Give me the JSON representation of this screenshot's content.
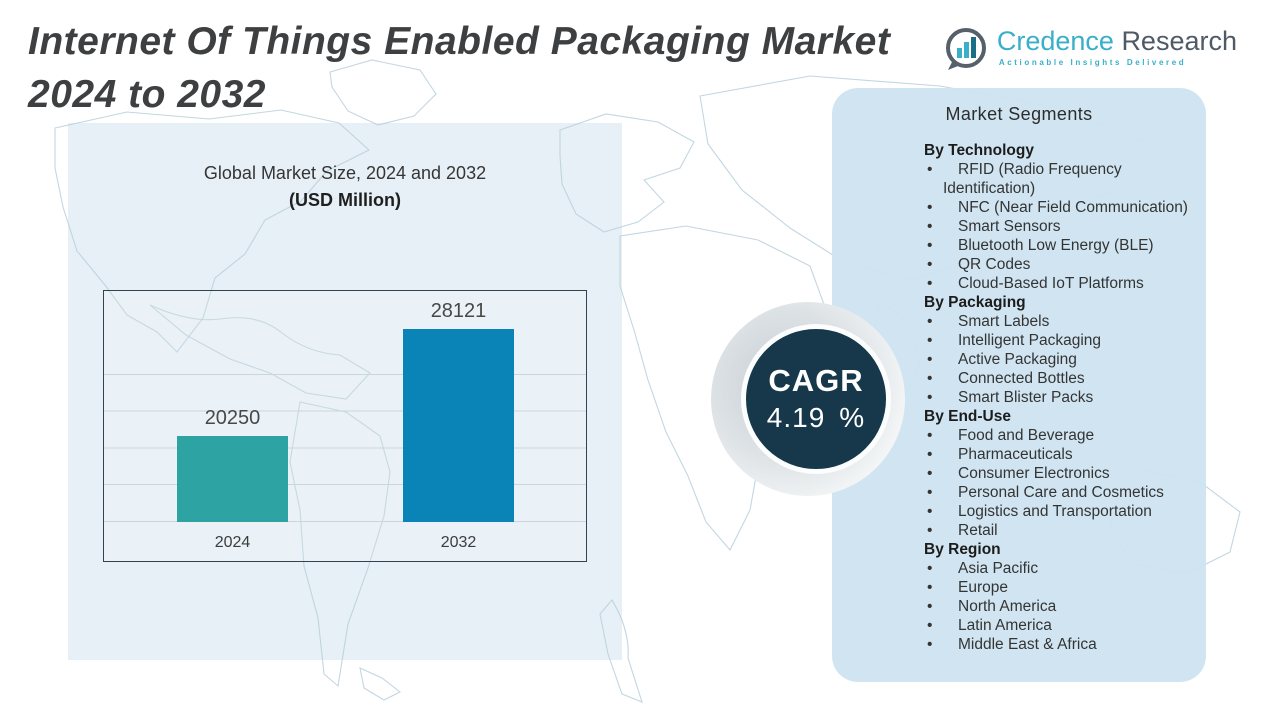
{
  "header": {
    "title_line1": "Internet Of Things Enabled Packaging Market",
    "title_line2": "2024 to 2032"
  },
  "logo": {
    "brand_primary": "Credence",
    "brand_secondary": "Research",
    "tagline": "Actionable Insights Delivered",
    "icon": "bar-chart-bubble-icon",
    "accent_color": "#3aafc9"
  },
  "chart_data": {
    "type": "bar",
    "title": "Global Market Size, 2024 and 2032",
    "subtitle": "(USD Million)",
    "categories": [
      "2024",
      "2032"
    ],
    "values": [
      20250,
      28121
    ],
    "colors": [
      "#2DA3A4",
      "#0A84B6"
    ],
    "ylim": [
      14000,
      30000
    ],
    "grid": "horizontal",
    "legend": "none",
    "unit": "USD Million"
  },
  "cagr": {
    "label": "CAGR",
    "value": "4.19",
    "unit": "%",
    "circle_color": "#16384a"
  },
  "segments": {
    "title": "Market Segments",
    "panel_color": "#cfe4f0",
    "sections": [
      {
        "header": "By Technology",
        "items": [
          "RFID (Radio Frequency Identification)",
          "NFC (Near Field Communication)",
          "Smart Sensors",
          "Bluetooth Low Energy (BLE)",
          "QR Codes",
          "Cloud-Based IoT Platforms"
        ]
      },
      {
        "header": "By  Packaging",
        "items": [
          "Smart Labels",
          "Intelligent Packaging",
          "Active Packaging",
          "Connected Bottles",
          "Smart Blister Packs"
        ]
      },
      {
        "header": "By End-Use",
        "items": [
          "Food and Beverage",
          "Pharmaceuticals",
          "Consumer Electronics",
          "Personal Care and Cosmetics",
          "Logistics and Transportation",
          "Retail"
        ]
      },
      {
        "header": "By Region",
        "items": [
          "Asia Pacific",
          "Europe",
          "North America",
          "Latin America",
          "Middle East & Africa"
        ]
      }
    ]
  }
}
